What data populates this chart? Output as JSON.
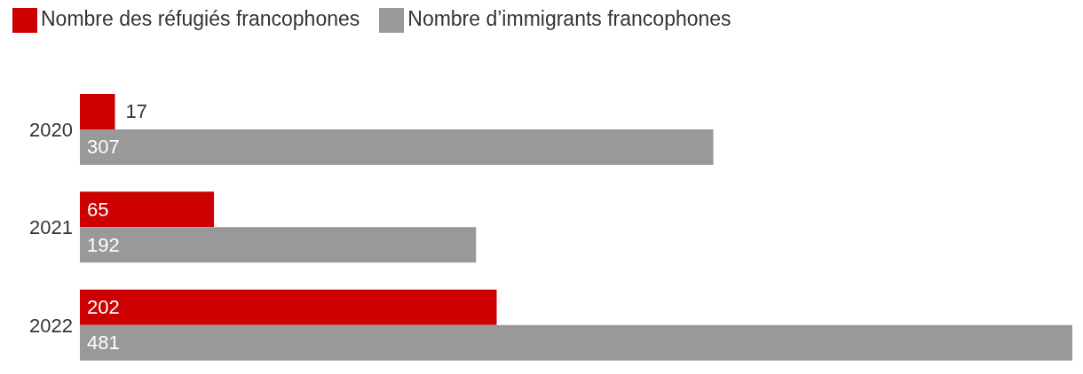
{
  "chart_data": {
    "type": "bar",
    "orientation": "horizontal",
    "categories": [
      "2020",
      "2021",
      "2022"
    ],
    "series": [
      {
        "name": "Nombre des réfugiés francophones",
        "color": "#cc0000",
        "values": [
          17,
          65,
          202
        ]
      },
      {
        "name": "Nombre d’immigrants francophones",
        "color": "#999999",
        "values": [
          307,
          192,
          481
        ]
      }
    ],
    "xlim": [
      0,
      481
    ],
    "data_labels": true,
    "legend": "top left"
  }
}
